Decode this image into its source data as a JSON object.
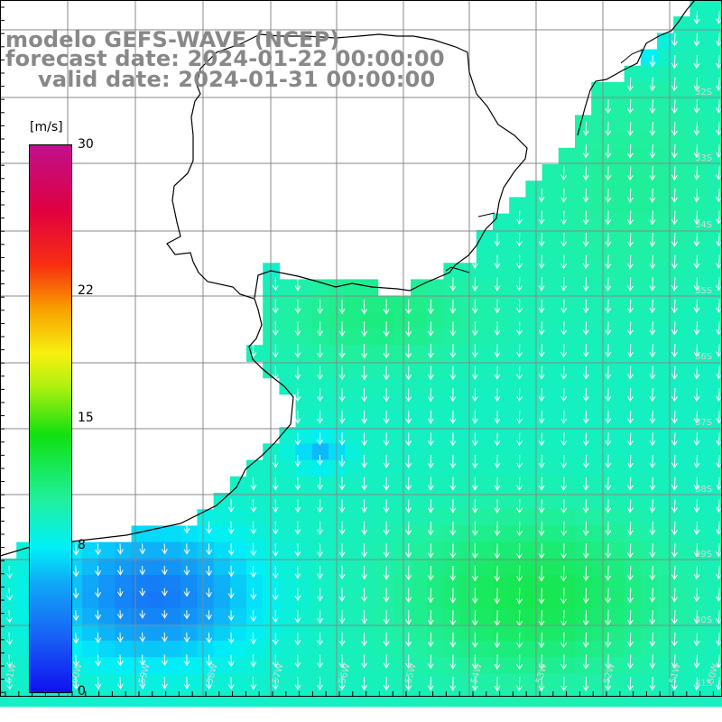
{
  "header": {
    "line1": "modelo GEFS-WAVE (NCEP)",
    "line2": "forecast date: 2024-01-22 00:00:00",
    "line3": "valid date: 2024-01-31 00:00:00"
  },
  "colorbar": {
    "unit": "[m/s]",
    "min": 0,
    "max": 30,
    "ticks": [
      {
        "value": 30,
        "label": "30"
      },
      {
        "value": 22,
        "label": "22"
      },
      {
        "value": 15,
        "label": "15"
      },
      {
        "value": 8,
        "label": "8"
      },
      {
        "value": 0,
        "label": "0"
      }
    ]
  },
  "map": {
    "lat_labels": [
      "32S",
      "33S",
      "34S",
      "35S",
      "36S",
      "37S",
      "38S",
      "39S",
      "40S",
      "41S"
    ],
    "lon_labels": [
      "61W",
      "60W",
      "59W",
      "58W",
      "57W",
      "56W",
      "55W",
      "54W",
      "53W",
      "52W",
      "51W",
      "50W"
    ],
    "colors": {
      "land": "#ffffff",
      "coastline": "#000000",
      "grid": "#888888",
      "arrows": "#ffffff",
      "title": "#888888"
    }
  }
}
